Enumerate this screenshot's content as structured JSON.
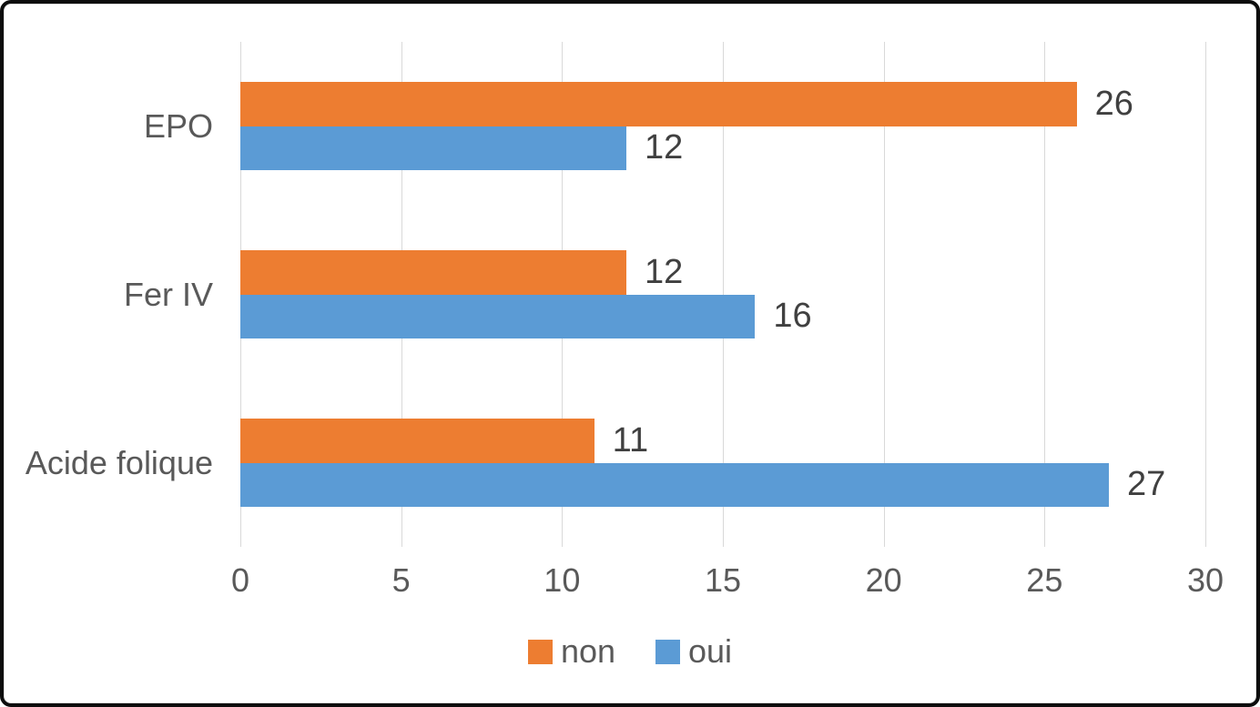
{
  "chart_data": {
    "type": "bar",
    "orientation": "horizontal",
    "title": "",
    "xlabel": "",
    "ylabel": "",
    "categories": [
      "EPO",
      "Fer IV",
      "Acide folique"
    ],
    "series": [
      {
        "name": "non",
        "color": "#ED7D31",
        "values": [
          26,
          12,
          11
        ]
      },
      {
        "name": "oui",
        "color": "#5B9BD5",
        "values": [
          12,
          16,
          27
        ]
      }
    ],
    "x_ticks": [
      "0",
      "5",
      "10",
      "15",
      "20",
      "25",
      "30"
    ],
    "xlim": [
      0,
      30
    ],
    "grid": "vertical-only",
    "data_labels": true,
    "legend_position": "bottom-center",
    "legend_items": [
      {
        "label": "non",
        "color": "#ED7D31"
      },
      {
        "label": "oui",
        "color": "#5B9BD5"
      }
    ]
  },
  "colors": {
    "series_non": "#ED7D31",
    "series_oui": "#5B9BD5",
    "gridline": "#D9D9D9",
    "axis_text": "#595959",
    "data_label_text": "#404040",
    "frame_border": "#0C0C0C",
    "background": "#FFFFFF"
  }
}
